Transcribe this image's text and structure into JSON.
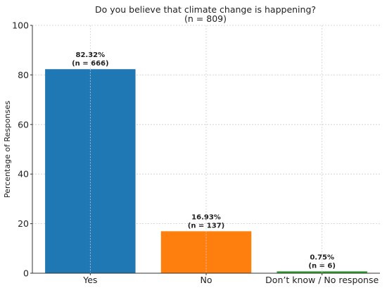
{
  "chart_data": {
    "type": "bar",
    "title": "Do you believe that climate change is happening?",
    "subtitle": "(n = 809)",
    "xlabel": "",
    "ylabel": "Percentage of Responses",
    "ylim": [
      0,
      100
    ],
    "yticks": [
      "0",
      "20",
      "40",
      "60",
      "80",
      "100"
    ],
    "grid": true,
    "categories": [
      "Yes",
      "No",
      "Don’t know / No response"
    ],
    "values": [
      82.32,
      16.93,
      0.75
    ],
    "data_labels": [
      {
        "pct": "82.32%",
        "n": "(n = 666)"
      },
      {
        "pct": "16.93%",
        "n": "(n = 137)"
      },
      {
        "pct": "0.75%",
        "n": "(n = 6)"
      }
    ],
    "colors": [
      "#1f77b4",
      "#ff7f0e",
      "#2ca02c"
    ]
  }
}
